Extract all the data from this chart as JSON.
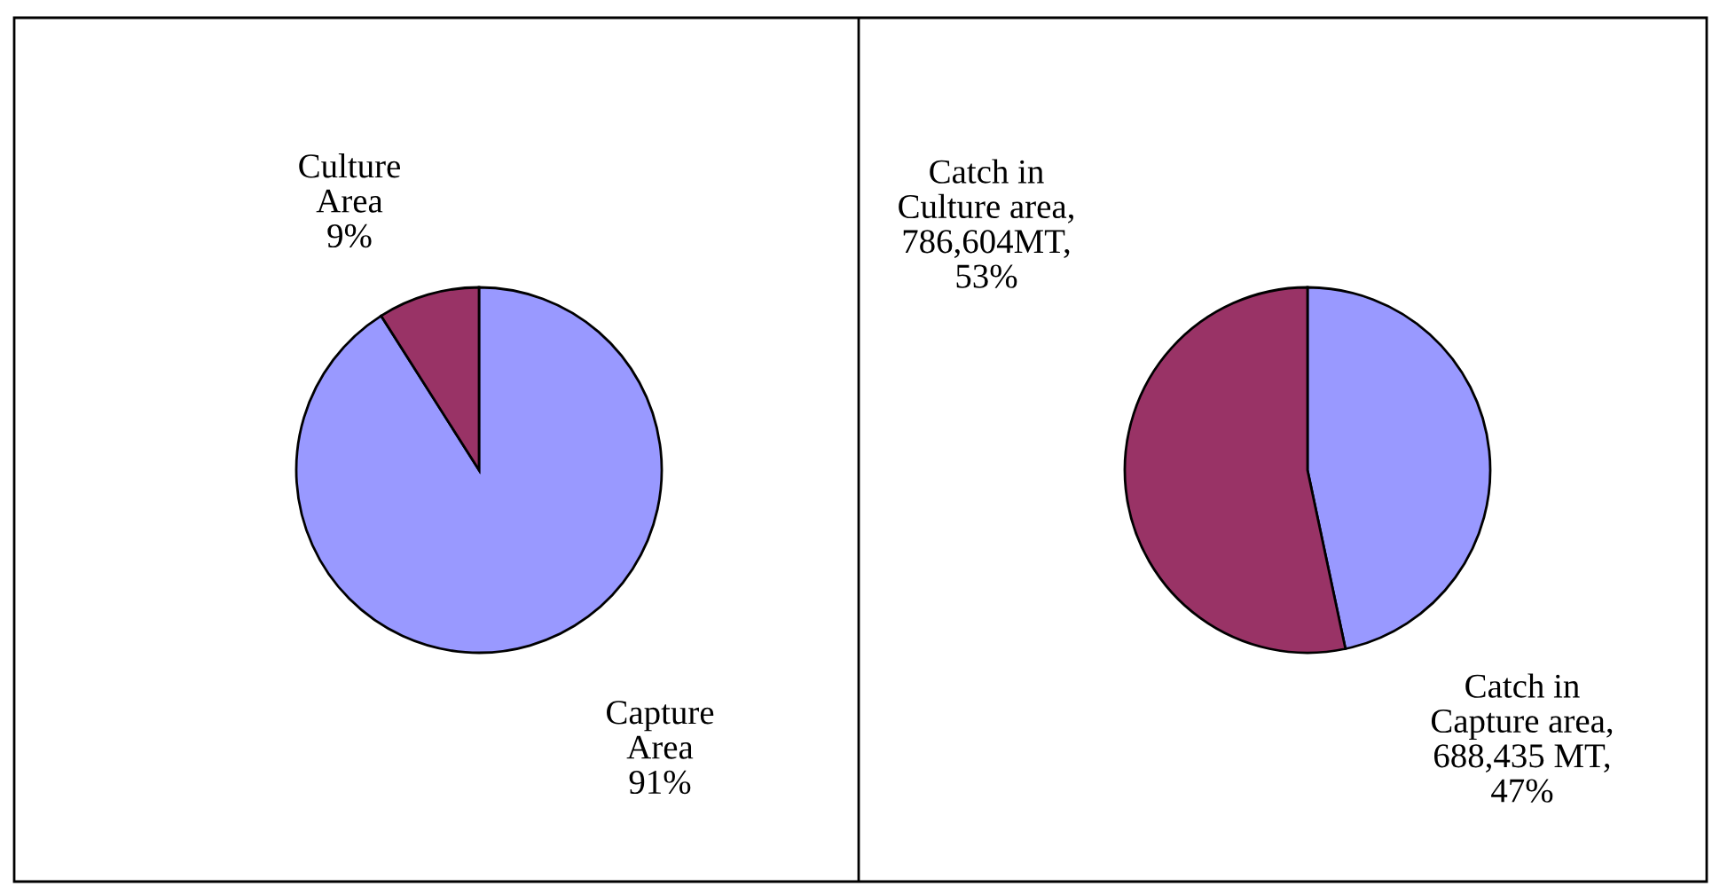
{
  "chart_data": [
    {
      "type": "pie",
      "categories": [
        "Capture\nArea",
        "Culture\nArea"
      ],
      "values": [
        91,
        9
      ],
      "value_labels": [
        "91%",
        "9%"
      ],
      "colors": [
        "#9999ff",
        "#993366"
      ]
    },
    {
      "type": "pie",
      "categories": [
        "Catch in\nCapture area",
        "Catch in\nCulture area"
      ],
      "values": [
        688435,
        786604
      ],
      "value_labels": [
        ",\n688,435 MT,\n47%",
        ",\n786,604MT,\n53%"
      ],
      "colors": [
        "#9999ff",
        "#993366"
      ]
    }
  ]
}
